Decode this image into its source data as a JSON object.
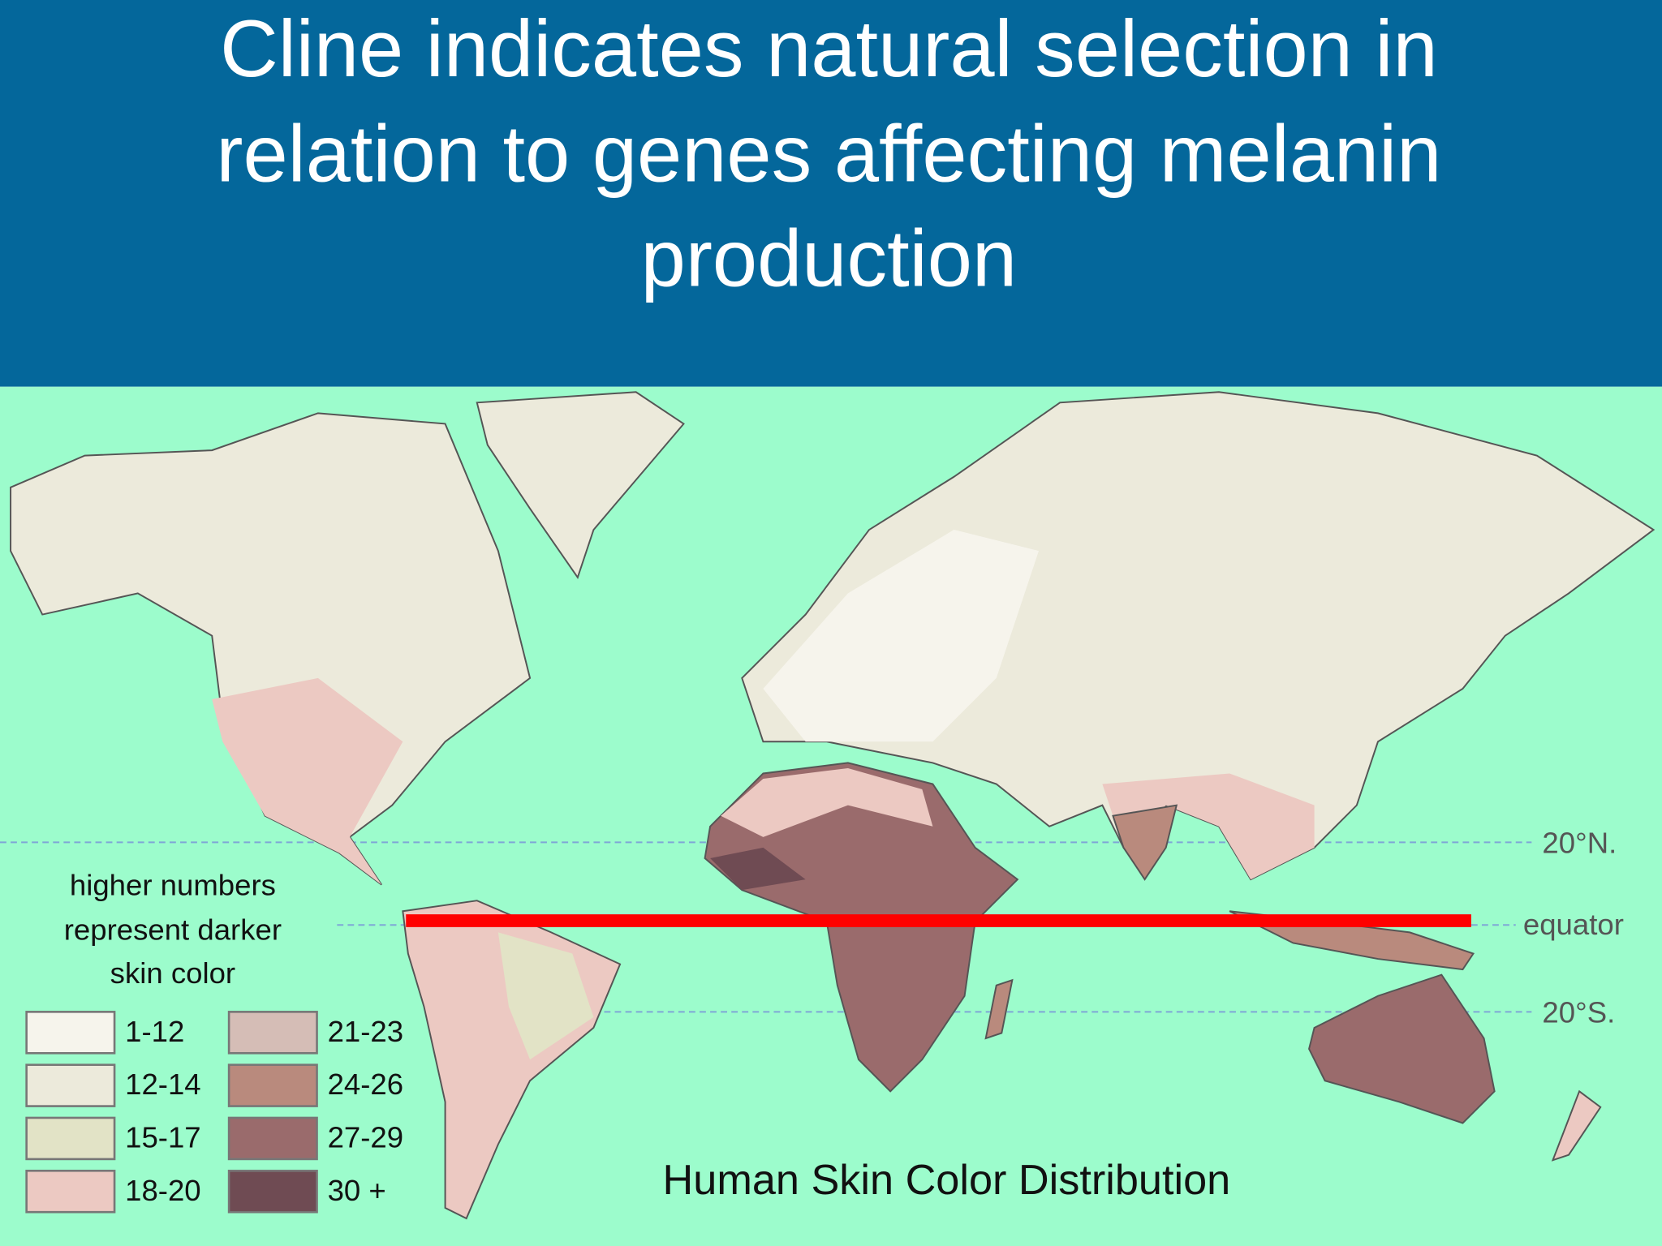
{
  "header": {
    "title_lines": [
      "Cline indicates natural selection in",
      "relation to genes affecting melanin",
      "production"
    ]
  },
  "map": {
    "latitude_labels": [
      "20°N.",
      "equator",
      "20°S."
    ],
    "legend": {
      "note_lines": [
        "higher numbers",
        "represent darker",
        "skin color"
      ],
      "items": [
        {
          "label": "1-12",
          "color": "#f6f4ec"
        },
        {
          "label": "12-14",
          "color": "#eceadb"
        },
        {
          "label": "15-17",
          "color": "#e2e3c6"
        },
        {
          "label": "18-20",
          "color": "#ecc9c2"
        },
        {
          "label": "21-23",
          "color": "#d5bdb6"
        },
        {
          "label": "24-26",
          "color": "#b98a7d"
        },
        {
          "label": "27-29",
          "color": "#9a6b6c"
        },
        {
          "label": "30 +",
          "color": "#6f4b53"
        }
      ]
    },
    "title": "Human Skin Color Distribution"
  }
}
